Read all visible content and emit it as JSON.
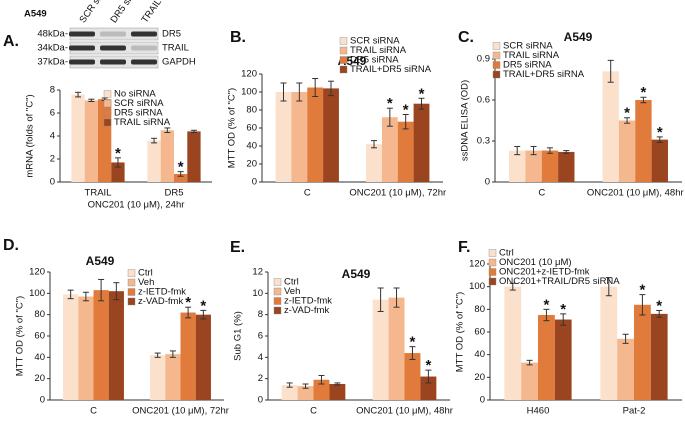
{
  "blot": {
    "cell_line": "A549",
    "lanes": [
      "SCR siRNA",
      "DR5 siRNA",
      "TRAIL siRNA"
    ],
    "markers": [
      "48kDa-",
      "34kDa-",
      "37kDa-"
    ],
    "bands": [
      "DR5",
      "TRAIL",
      "GAPDH"
    ]
  },
  "chart_data": [
    {
      "type": "bar",
      "panel": "A.",
      "ylabel": "mRNA (folds of \"C\")",
      "xlabel": "ONC201 (10 μM), 24hr",
      "categories": [
        "TRAIL",
        "DR5"
      ],
      "series": [
        {
          "name": "No siRNA",
          "color": "#fbe0cc",
          "values": [
            7.6,
            3.6
          ],
          "errors": [
            0.2,
            0.2
          ],
          "significance": [
            null,
            null
          ]
        },
        {
          "name": "SCR siRNA",
          "color": "#f5b88e",
          "values": [
            7.1,
            4.5
          ],
          "errors": [
            0.1,
            0.2
          ],
          "significance": [
            null,
            null
          ]
        },
        {
          "name": "DR5 siRNA",
          "color": "#e07b3c",
          "values": [
            7.2,
            0.7
          ],
          "errors": [
            0.1,
            0.2
          ],
          "significance": [
            null,
            "*"
          ]
        },
        {
          "name": "TRAIL siRNA",
          "color": "#9a4520",
          "values": [
            1.7,
            4.4
          ],
          "errors": [
            0.4,
            0.1
          ],
          "significance": [
            "*",
            null
          ]
        }
      ],
      "ylim": [
        0,
        8
      ],
      "yticks": [
        0,
        2,
        4,
        6,
        8
      ]
    },
    {
      "type": "bar",
      "panel": "B.",
      "title": "A549",
      "ylabel": "MTT OD (% of \"C\")",
      "categories": [
        "C",
        "ONC201 (10 μM), 72hr"
      ],
      "series": [
        {
          "name": "SCR siRNA",
          "color": "#fbe0cc",
          "values": [
            100,
            42
          ],
          "errors": [
            10,
            4
          ],
          "significance": [
            null,
            null
          ]
        },
        {
          "name": "TRAIL siRNA",
          "color": "#f5b88e",
          "values": [
            100,
            72
          ],
          "errors": [
            10,
            10
          ],
          "significance": [
            null,
            "*"
          ]
        },
        {
          "name": "DR5 siRNA",
          "color": "#e07b3c",
          "values": [
            105,
            67
          ],
          "errors": [
            10,
            8
          ],
          "significance": [
            null,
            "*"
          ]
        },
        {
          "name": "TRAIL+DR5 siRNA",
          "color": "#9a4520",
          "values": [
            104,
            87
          ],
          "errors": [
            8,
            6
          ],
          "significance": [
            null,
            "*"
          ]
        }
      ],
      "ylim": [
        0,
        120
      ],
      "yticks": [
        0,
        20,
        40,
        60,
        80,
        100,
        120
      ]
    },
    {
      "type": "bar",
      "panel": "C.",
      "title": "A549",
      "ylabel": "ssDNA ELISA (OD)",
      "categories": [
        "C",
        "ONC201 (10 μM), 48hr"
      ],
      "series": [
        {
          "name": "SCR siRNA",
          "color": "#fbe0cc",
          "values": [
            0.23,
            0.81
          ],
          "errors": [
            0.03,
            0.08
          ],
          "significance": [
            null,
            null
          ]
        },
        {
          "name": "TRAIL siRNA",
          "color": "#f5b88e",
          "values": [
            0.23,
            0.45
          ],
          "errors": [
            0.03,
            0.02
          ],
          "significance": [
            null,
            "*"
          ]
        },
        {
          "name": "DR5 siRNA",
          "color": "#e07b3c",
          "values": [
            0.23,
            0.6
          ],
          "errors": [
            0.02,
            0.02
          ],
          "significance": [
            null,
            "*"
          ]
        },
        {
          "name": "TRAIL+DR5 siRNA",
          "color": "#9a4520",
          "values": [
            0.22,
            0.31
          ],
          "errors": [
            0.01,
            0.02
          ],
          "significance": [
            null,
            "*"
          ]
        }
      ],
      "ylim": [
        0,
        0.9
      ],
      "yticks": [
        0,
        0.3,
        0.6,
        0.9
      ]
    },
    {
      "type": "bar",
      "panel": "D.",
      "title": "A549",
      "ylabel": "MTT OD (% of \"C\")",
      "categories": [
        "C",
        "ONC201 (10 μM), 72hr"
      ],
      "series": [
        {
          "name": "Ctrl",
          "color": "#fbe0cc",
          "values": [
            99,
            42
          ],
          "errors": [
            4,
            2
          ],
          "significance": [
            null,
            null
          ]
        },
        {
          "name": "Veh",
          "color": "#f5b88e",
          "values": [
            97,
            43
          ],
          "errors": [
            4,
            3
          ],
          "significance": [
            null,
            null
          ]
        },
        {
          "name": "z-IETD-fmk",
          "color": "#e07b3c",
          "values": [
            103,
            82
          ],
          "errors": [
            10,
            5
          ],
          "significance": [
            null,
            "*"
          ]
        },
        {
          "name": "z-VAD-fmk",
          "color": "#9a4520",
          "values": [
            102,
            80
          ],
          "errors": [
            8,
            4
          ],
          "significance": [
            null,
            "*"
          ]
        }
      ],
      "ylim": [
        0,
        120
      ],
      "yticks": [
        0,
        20,
        40,
        60,
        80,
        100,
        120
      ]
    },
    {
      "type": "bar",
      "panel": "E.",
      "title": "A549",
      "ylabel": "Sub G1 (%)",
      "categories": [
        "C",
        "ONC201 (10 μM), 48hr"
      ],
      "series": [
        {
          "name": "Ctrl",
          "color": "#fbe0cc",
          "values": [
            1.4,
            9.4
          ],
          "errors": [
            0.2,
            1.1
          ],
          "significance": [
            null,
            null
          ]
        },
        {
          "name": "Veh",
          "color": "#f5b88e",
          "values": [
            1.3,
            9.6
          ],
          "errors": [
            0.2,
            0.9
          ],
          "significance": [
            null,
            null
          ]
        },
        {
          "name": "z-IETD-fmk",
          "color": "#e07b3c",
          "values": [
            1.9,
            4.4
          ],
          "errors": [
            0.4,
            0.6
          ],
          "significance": [
            null,
            "*"
          ]
        },
        {
          "name": "z-VAD-fmk",
          "color": "#9a4520",
          "values": [
            1.5,
            2.2
          ],
          "errors": [
            0.1,
            0.6
          ],
          "significance": [
            null,
            "*"
          ]
        }
      ],
      "ylim": [
        0,
        12
      ],
      "yticks": [
        0,
        2,
        4,
        6,
        8,
        10,
        12
      ]
    },
    {
      "type": "bar",
      "panel": "F.",
      "ylabel": "MTT OD (% of \"C\")",
      "categories": [
        "H460",
        "Pat-2"
      ],
      "series": [
        {
          "name": "Ctrl",
          "color": "#fbe0cc",
          "values": [
            100,
            100
          ],
          "errors": [
            3,
            8
          ],
          "significance": [
            null,
            null
          ]
        },
        {
          "name": "ONC201 (10 μM)",
          "color": "#f5b88e",
          "values": [
            33,
            54
          ],
          "errors": [
            2,
            4
          ],
          "significance": [
            null,
            null
          ]
        },
        {
          "name": "ONC201+z-IETD-fmk",
          "color": "#e07b3c",
          "values": [
            75,
            84
          ],
          "errors": [
            5,
            9
          ],
          "significance": [
            "*",
            "*"
          ]
        },
        {
          "name": "ONC201+TRAIL/DR5 siRNA",
          "color": "#9a4520",
          "values": [
            71,
            76
          ],
          "errors": [
            5,
            3
          ],
          "significance": [
            "*",
            "*"
          ]
        }
      ],
      "ylim": [
        0,
        120
      ],
      "yticks": [
        0,
        20,
        40,
        60,
        80,
        100,
        120
      ]
    }
  ]
}
